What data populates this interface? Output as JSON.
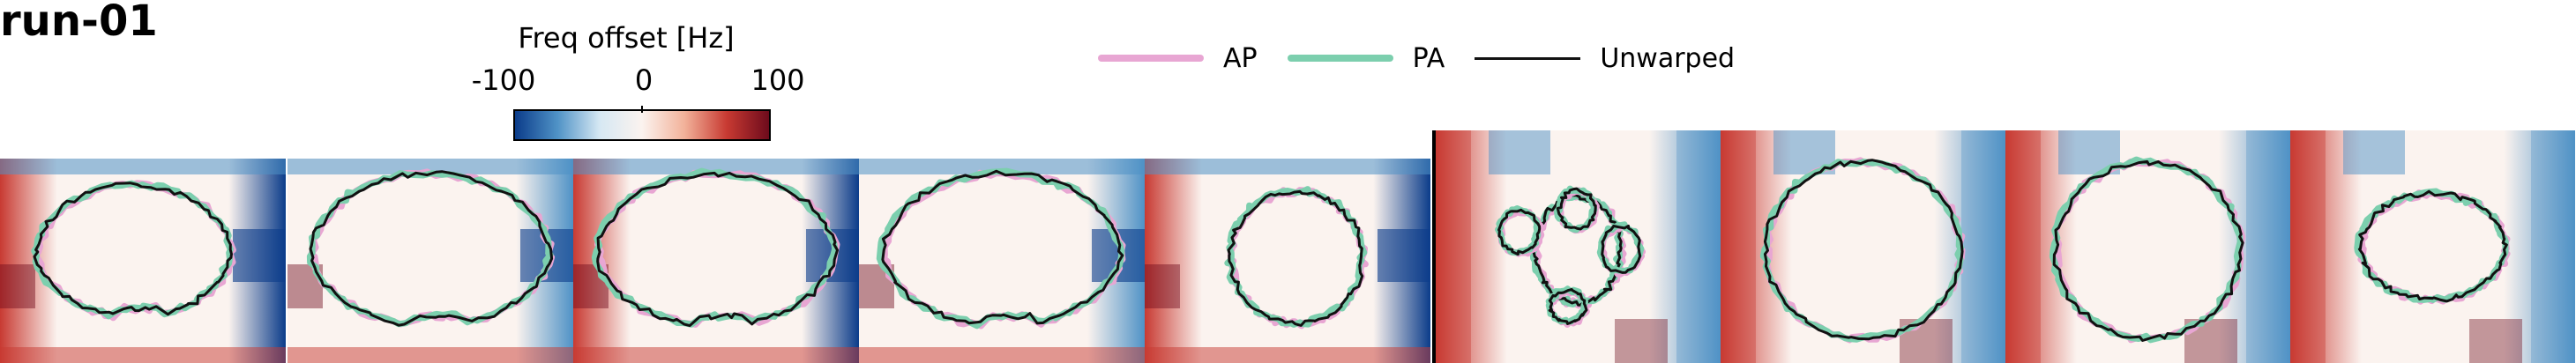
{
  "title": "run-01",
  "colorbar": {
    "label": "Freq offset [Hz]",
    "min": "-100",
    "mid": "0",
    "max": "100",
    "colors": [
      "#0b3c8a",
      "#4f92c6",
      "#d6e8f3",
      "#fbf3ef",
      "#f2b29a",
      "#c83a32",
      "#6e0b1c"
    ]
  },
  "legend": [
    {
      "label": "AP",
      "color": "#e8a6d3"
    },
    {
      "label": "PA",
      "color": "#7ccfae"
    },
    {
      "label": "Unwarped",
      "color": "#111111"
    }
  ],
  "panels": {
    "sagittal_count": 5,
    "axial_count": 4
  }
}
